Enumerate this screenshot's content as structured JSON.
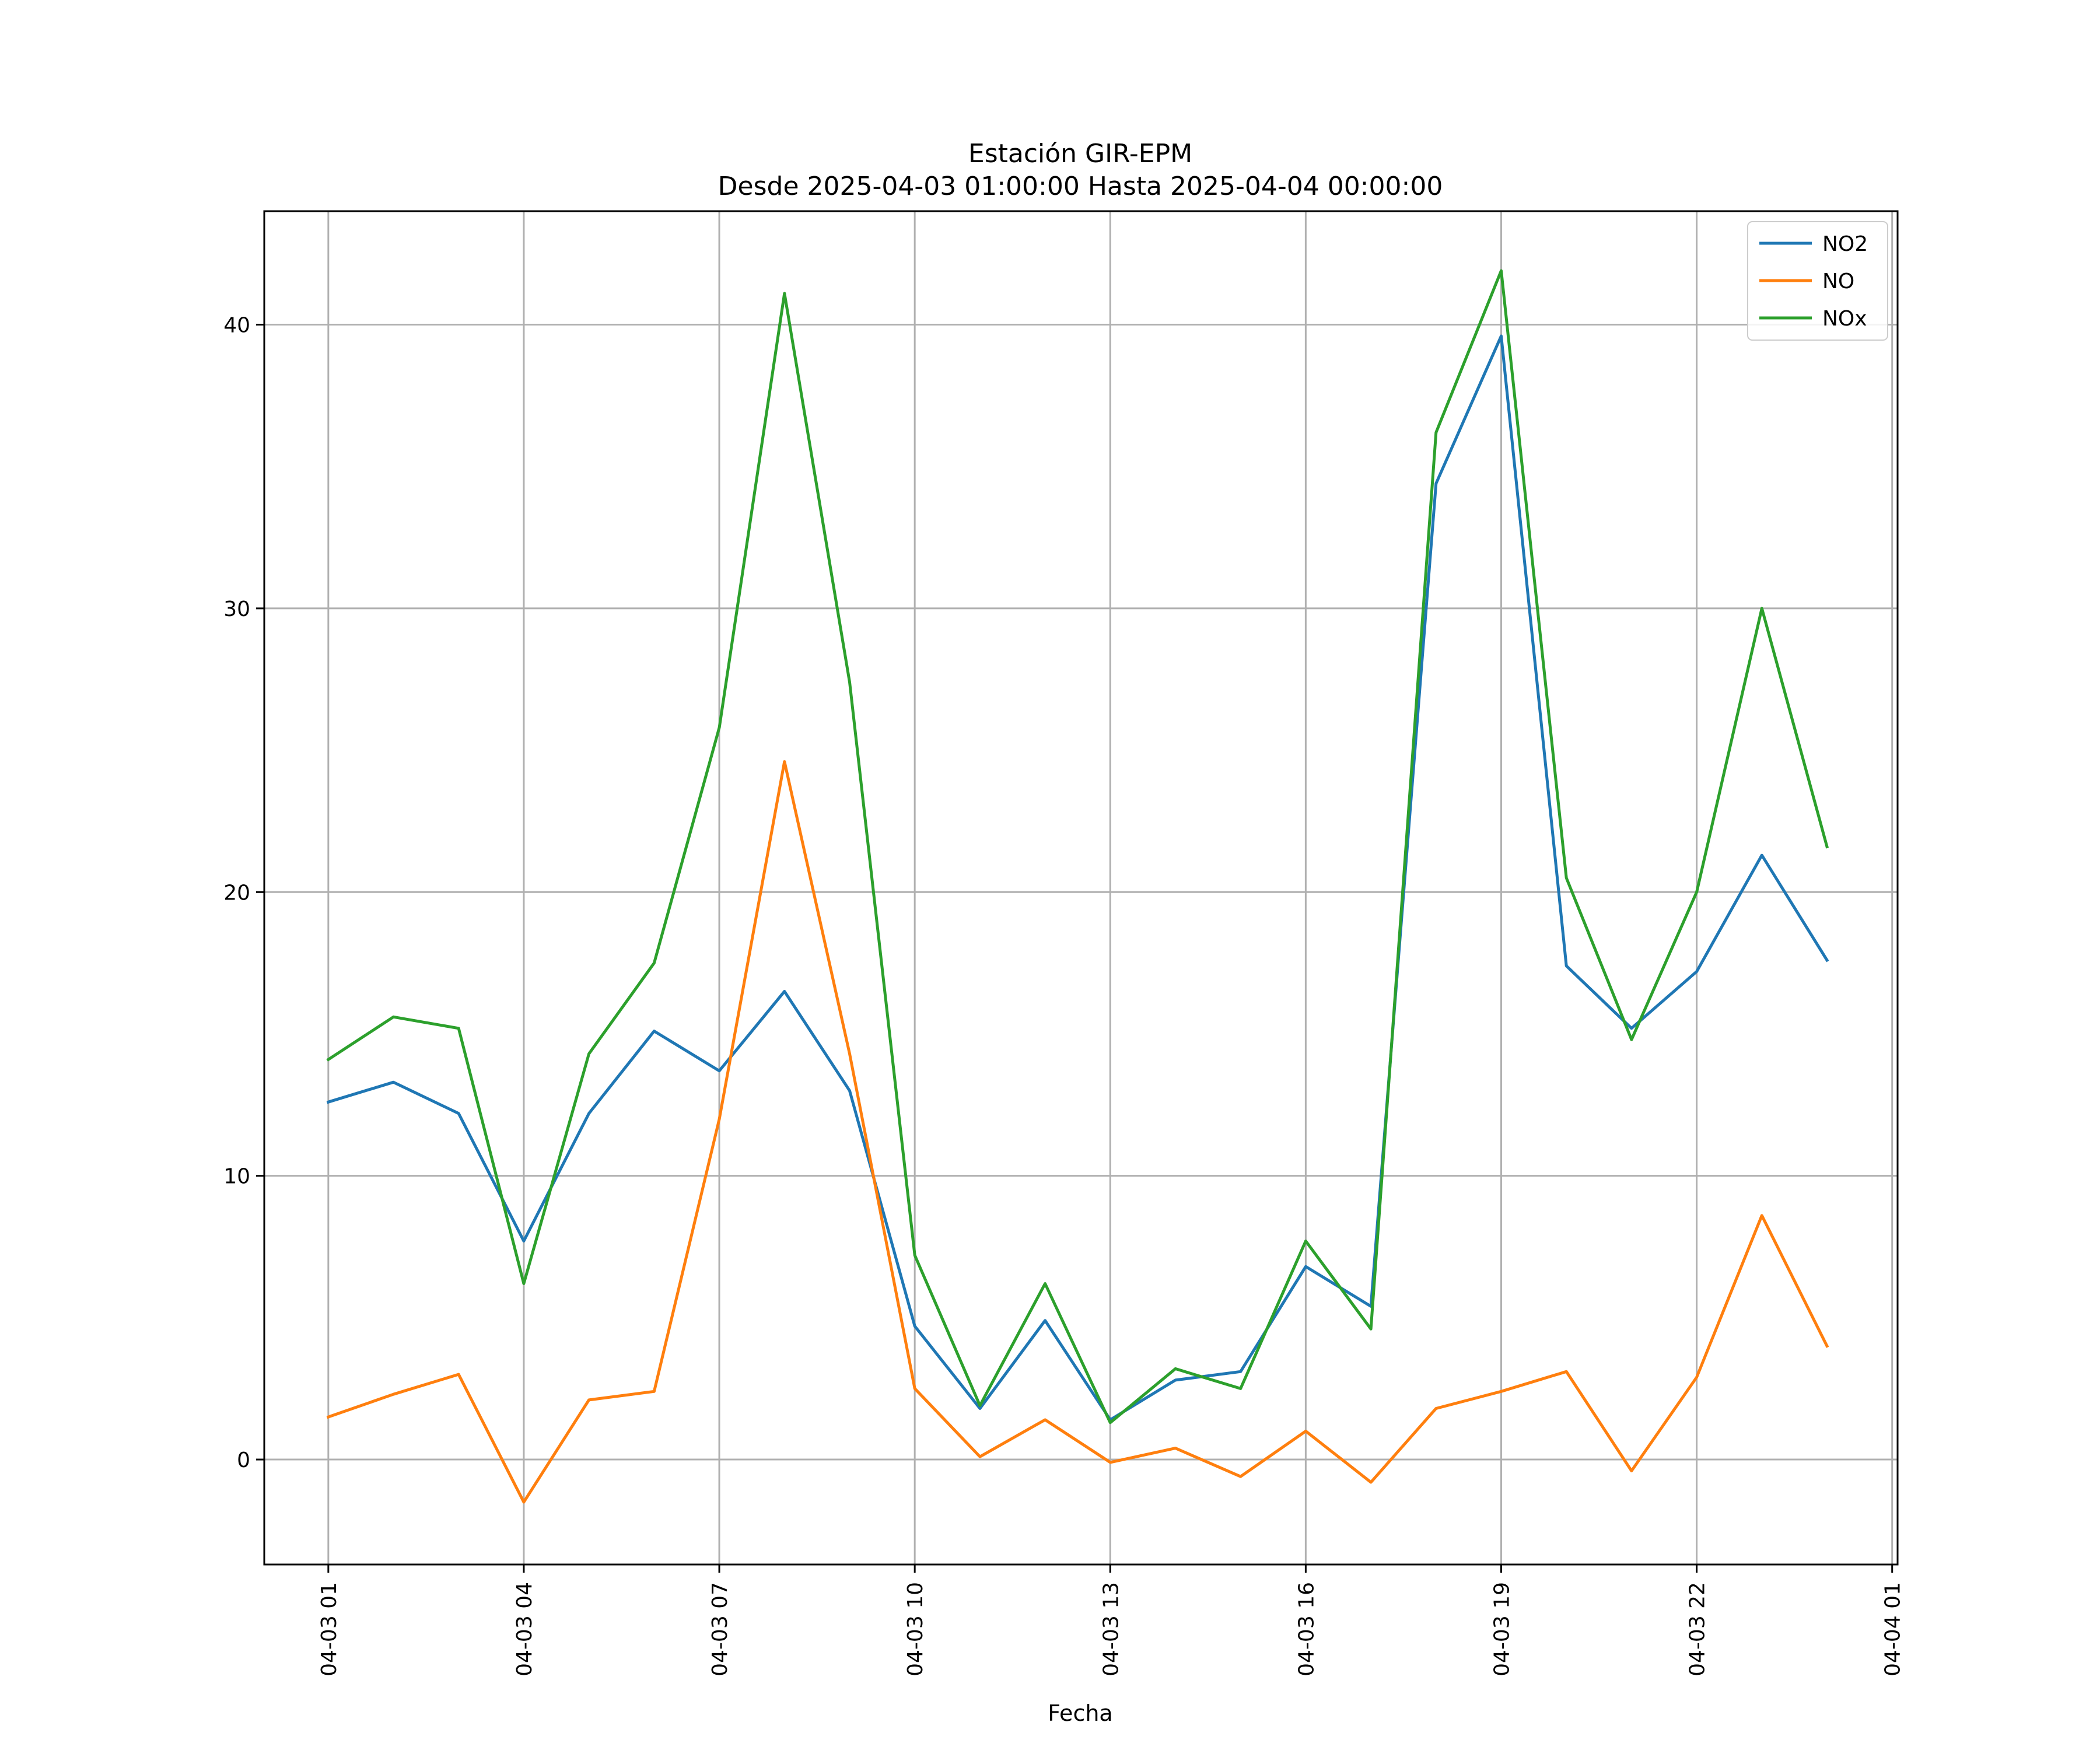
{
  "chart_data": {
    "type": "line",
    "title": "Estación GIR-EPM",
    "subtitle": "Desde 2025-04-03 01:00:00 Hasta 2025-04-04 00:00:00",
    "xlabel": "Fecha",
    "ylabel": "",
    "x": [
      "2025-04-03 01:00",
      "2025-04-03 02:00",
      "2025-04-03 03:00",
      "2025-04-03 04:00",
      "2025-04-03 05:00",
      "2025-04-03 06:00",
      "2025-04-03 07:00",
      "2025-04-03 08:00",
      "2025-04-03 09:00",
      "2025-04-03 10:00",
      "2025-04-03 11:00",
      "2025-04-03 12:00",
      "2025-04-03 13:00",
      "2025-04-03 14:00",
      "2025-04-03 15:00",
      "2025-04-03 16:00",
      "2025-04-03 17:00",
      "2025-04-03 18:00",
      "2025-04-03 19:00",
      "2025-04-03 20:00",
      "2025-04-03 21:00",
      "2025-04-03 22:00",
      "2025-04-03 23:00",
      "2025-04-04 00:00"
    ],
    "xlim": [
      "2025-04-03 00:01",
      "2025-04-04 01:05"
    ],
    "xticks": [
      "04-03 01",
      "04-03 04",
      "04-03 07",
      "04-03 10",
      "04-03 13",
      "04-03 16",
      "04-03 19",
      "04-03 22",
      "04-04 01"
    ],
    "yticks": [
      "0",
      "10",
      "20",
      "30",
      "40"
    ],
    "ylim": [
      -3.7,
      44
    ],
    "grid": true,
    "legend_position": "top-right",
    "series": [
      {
        "name": "NO2",
        "color": "#1f77b4",
        "values": [
          12.6,
          13.3,
          12.2,
          7.7,
          12.2,
          15.1,
          13.7,
          16.5,
          13.0,
          4.7,
          1.8,
          4.9,
          1.4,
          2.8,
          3.1,
          6.8,
          5.4,
          34.4,
          39.6,
          17.4,
          15.2,
          17.2,
          21.3,
          17.6
        ]
      },
      {
        "name": "NO",
        "color": "#ff7f0e",
        "values": [
          1.5,
          2.3,
          3.0,
          -1.5,
          2.1,
          2.4,
          12.0,
          24.6,
          14.3,
          2.5,
          0.1,
          1.4,
          -0.1,
          0.4,
          -0.6,
          1.0,
          -0.8,
          1.8,
          2.4,
          3.1,
          -0.4,
          2.9,
          8.6,
          4.0
        ]
      },
      {
        "name": "NOx",
        "color": "#2ca02c",
        "values": [
          14.1,
          15.6,
          15.2,
          6.2,
          14.3,
          17.5,
          25.8,
          41.1,
          27.4,
          7.2,
          1.9,
          6.2,
          1.3,
          3.2,
          2.5,
          7.7,
          4.6,
          36.2,
          41.9,
          20.5,
          14.8,
          20.0,
          30.0,
          21.6
        ]
      }
    ]
  }
}
